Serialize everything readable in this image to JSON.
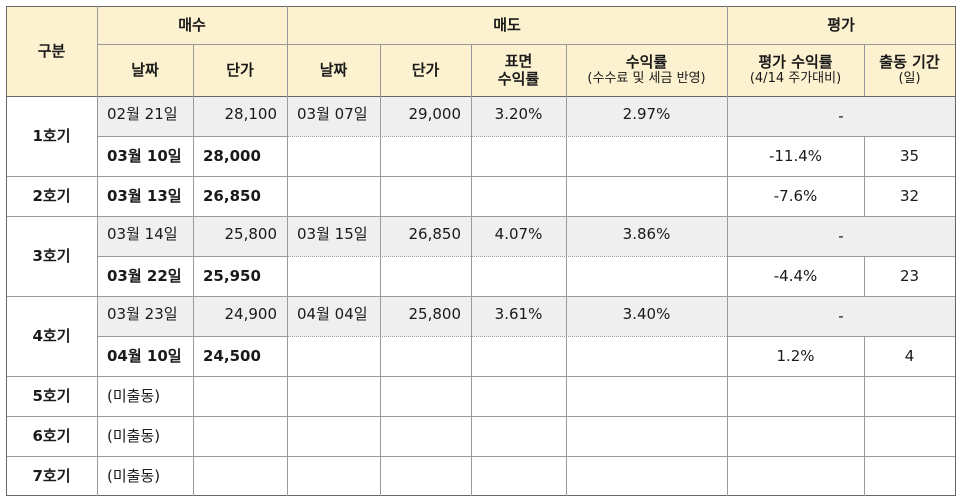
{
  "headers": {
    "category": "구분",
    "buy": "매수",
    "sell": "매도",
    "eval": "평가",
    "buy_date": "날짜",
    "buy_price": "단가",
    "sell_date": "날짜",
    "sell_price": "단가",
    "surface_yield_1": "표면",
    "surface_yield_2": "수익률",
    "yield": "수익률",
    "yield_sub": "(수수료 및 세금 반영)",
    "eval_yield": "평가 수익률",
    "eval_yield_sub": "(4/14 주가대비)",
    "period": "출동 기간",
    "period_sub": "(일)"
  },
  "groups": [
    {
      "label": "1호기"
    },
    {
      "label": "2호기"
    },
    {
      "label": "3호기"
    },
    {
      "label": "4호기"
    },
    {
      "label": "5호기"
    },
    {
      "label": "6호기"
    },
    {
      "label": "7호기"
    }
  ],
  "rows": [
    {
      "buy_date": "02월 21일",
      "buy_price": "28,100",
      "sell_date": "03월 07일",
      "sell_price": "29,000",
      "surface_yield": "3.20%",
      "yield": "2.97%",
      "eval_yield": "-",
      "period": ""
    },
    {
      "buy_date": "03월 10일",
      "buy_price": "28,000",
      "sell_date": "",
      "sell_price": "",
      "surface_yield": "",
      "yield": "",
      "eval_yield": "-11.4%",
      "period": "35"
    },
    {
      "buy_date": "03월 13일",
      "buy_price": "26,850",
      "sell_date": "",
      "sell_price": "",
      "surface_yield": "",
      "yield": "",
      "eval_yield": "-7.6%",
      "period": "32"
    },
    {
      "buy_date": "03월 14일",
      "buy_price": "25,800",
      "sell_date": "03월 15일",
      "sell_price": "26,850",
      "surface_yield": "4.07%",
      "yield": "3.86%",
      "eval_yield": "-",
      "period": ""
    },
    {
      "buy_date": "03월 22일",
      "buy_price": "25,950",
      "sell_date": "",
      "sell_price": "",
      "surface_yield": "",
      "yield": "",
      "eval_yield": "-4.4%",
      "period": "23"
    },
    {
      "buy_date": "03월 23일",
      "buy_price": "24,900",
      "sell_date": "04월 04일",
      "sell_price": "25,800",
      "surface_yield": "3.61%",
      "yield": "3.40%",
      "eval_yield": "-",
      "period": ""
    },
    {
      "buy_date": "04월 10일",
      "buy_price": "24,500",
      "sell_date": "",
      "sell_price": "",
      "surface_yield": "",
      "yield": "",
      "eval_yield": "1.2%",
      "period": "4"
    },
    {
      "buy_date": "(미출동)",
      "buy_price": "",
      "sell_date": "",
      "sell_price": "",
      "surface_yield": "",
      "yield": "",
      "eval_yield": "",
      "period": ""
    },
    {
      "buy_date": "(미출동)",
      "buy_price": "",
      "sell_date": "",
      "sell_price": "",
      "surface_yield": "",
      "yield": "",
      "eval_yield": "",
      "period": ""
    },
    {
      "buy_date": "(미출동)",
      "buy_price": "",
      "sell_date": "",
      "sell_price": "",
      "surface_yield": "",
      "yield": "",
      "eval_yield": "",
      "period": ""
    }
  ]
}
